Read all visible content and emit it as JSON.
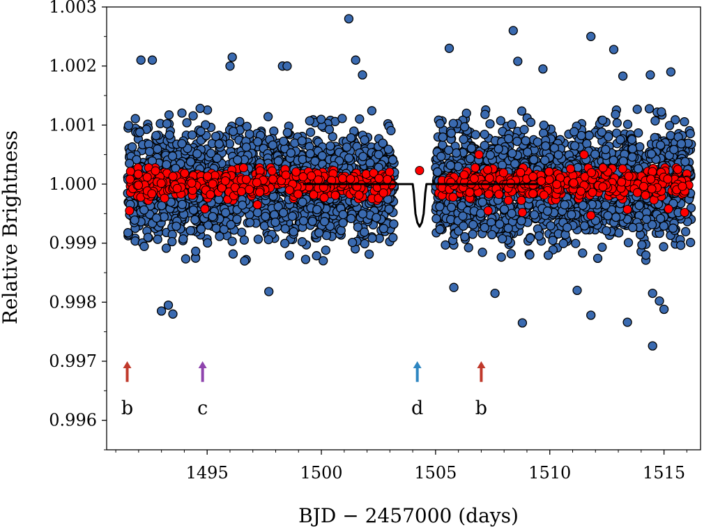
{
  "chart_data": {
    "type": "scatter",
    "title": "",
    "xlabel": "BJD − 2457000 (days)",
    "ylabel": "Relative Brightness",
    "xlim": [
      1490.6,
      1516.6
    ],
    "ylim": [
      0.9955,
      1.003
    ],
    "xticks": [
      1495,
      1500,
      1505,
      1510,
      1515
    ],
    "xtick_labels": [
      "1495",
      "1500",
      "1505",
      "1510",
      "1515"
    ],
    "yticks": [
      0.996,
      0.997,
      0.998,
      0.999,
      1.0,
      1.001,
      1.002,
      1.003
    ],
    "ytick_labels": [
      "0.996",
      "0.997",
      "0.998",
      "0.999",
      "1.000",
      "1.001",
      "1.002",
      "1.003"
    ],
    "segments": [
      [
        1491.5,
        1503.2
      ],
      [
        1505.0,
        1516.2
      ]
    ],
    "series": [
      {
        "name": "raw photometry",
        "color": "#3a6ab0",
        "sigma": 0.00045,
        "outliers": [
          {
            "x": 1501.2,
            "y": 1.0028
          },
          {
            "x": 1508.4,
            "y": 1.0026
          },
          {
            "x": 1511.8,
            "y": 1.0025
          },
          {
            "x": 1505.6,
            "y": 1.0023
          },
          {
            "x": 1512.8,
            "y": 1.00228
          },
          {
            "x": 1496.1,
            "y": 1.00215
          },
          {
            "x": 1501.5,
            "y": 1.0021
          },
          {
            "x": 1492.1,
            "y": 1.0021
          },
          {
            "x": 1492.6,
            "y": 1.0021
          },
          {
            "x": 1508.6,
            "y": 1.00208
          },
          {
            "x": 1496.0,
            "y": 1.002
          },
          {
            "x": 1498.3,
            "y": 1.002
          },
          {
            "x": 1498.5,
            "y": 1.002
          },
          {
            "x": 1501.8,
            "y": 1.00185
          },
          {
            "x": 1509.7,
            "y": 1.00195
          },
          {
            "x": 1514.4,
            "y": 1.00185
          },
          {
            "x": 1515.3,
            "y": 1.0019
          },
          {
            "x": 1513.2,
            "y": 1.00183
          },
          {
            "x": 1493.0,
            "y": 0.99785
          },
          {
            "x": 1493.5,
            "y": 0.9978
          },
          {
            "x": 1493.3,
            "y": 0.99795
          },
          {
            "x": 1497.7,
            "y": 0.99818
          },
          {
            "x": 1508.8,
            "y": 0.99765
          },
          {
            "x": 1511.8,
            "y": 0.99778
          },
          {
            "x": 1513.4,
            "y": 0.99766
          },
          {
            "x": 1514.5,
            "y": 0.99726
          },
          {
            "x": 1515.0,
            "y": 0.99788
          },
          {
            "x": 1514.8,
            "y": 0.99802
          },
          {
            "x": 1507.6,
            "y": 0.99815
          },
          {
            "x": 1505.8,
            "y": 0.99825
          },
          {
            "x": 1511.2,
            "y": 0.9982
          },
          {
            "x": 1514.5,
            "y": 0.99815
          }
        ]
      },
      {
        "name": "binned photometry",
        "color": "#ff0000",
        "sigma": 0.00012,
        "outliers": [
          {
            "x": 1491.6,
            "y": 0.99955
          },
          {
            "x": 1494.9,
            "y": 0.99958
          },
          {
            "x": 1497.2,
            "y": 0.99965
          },
          {
            "x": 1504.3,
            "y": 1.00023
          },
          {
            "x": 1506.9,
            "y": 1.0005
          },
          {
            "x": 1508.8,
            "y": 0.99952
          },
          {
            "x": 1511.8,
            "y": 0.99947
          },
          {
            "x": 1513.4,
            "y": 0.99957
          },
          {
            "x": 1515.2,
            "y": 0.99958
          },
          {
            "x": 1515.9,
            "y": 0.99952
          },
          {
            "x": 1511.5,
            "y": 1.0005
          },
          {
            "x": 1507.3,
            "y": 0.99955
          }
        ]
      },
      {
        "name": "transit model",
        "color": "#000000",
        "x": [
          1499.2,
          1503.3,
          1504.0,
          1504.05,
          1504.12,
          1504.2,
          1504.3,
          1504.4,
          1504.48,
          1504.55,
          1504.6,
          1505.0,
          1509.5
        ],
        "y": [
          1.0,
          1.0,
          1.0,
          0.99985,
          0.9995,
          0.99935,
          0.99928,
          0.99935,
          0.9995,
          0.99985,
          1.0,
          1.0,
          1.0
        ]
      }
    ],
    "annotations": [
      {
        "label": "b",
        "x": 1491.5,
        "color": "#c0392b"
      },
      {
        "label": "c",
        "x": 1494.8,
        "color": "#8e44ad"
      },
      {
        "label": "d",
        "x": 1504.2,
        "color": "#2e86c1"
      },
      {
        "label": "b",
        "x": 1507.0,
        "color": "#c0392b"
      }
    ],
    "arrow_y_range": [
      0.99665,
      0.997
    ],
    "label_y": 0.9961
  }
}
